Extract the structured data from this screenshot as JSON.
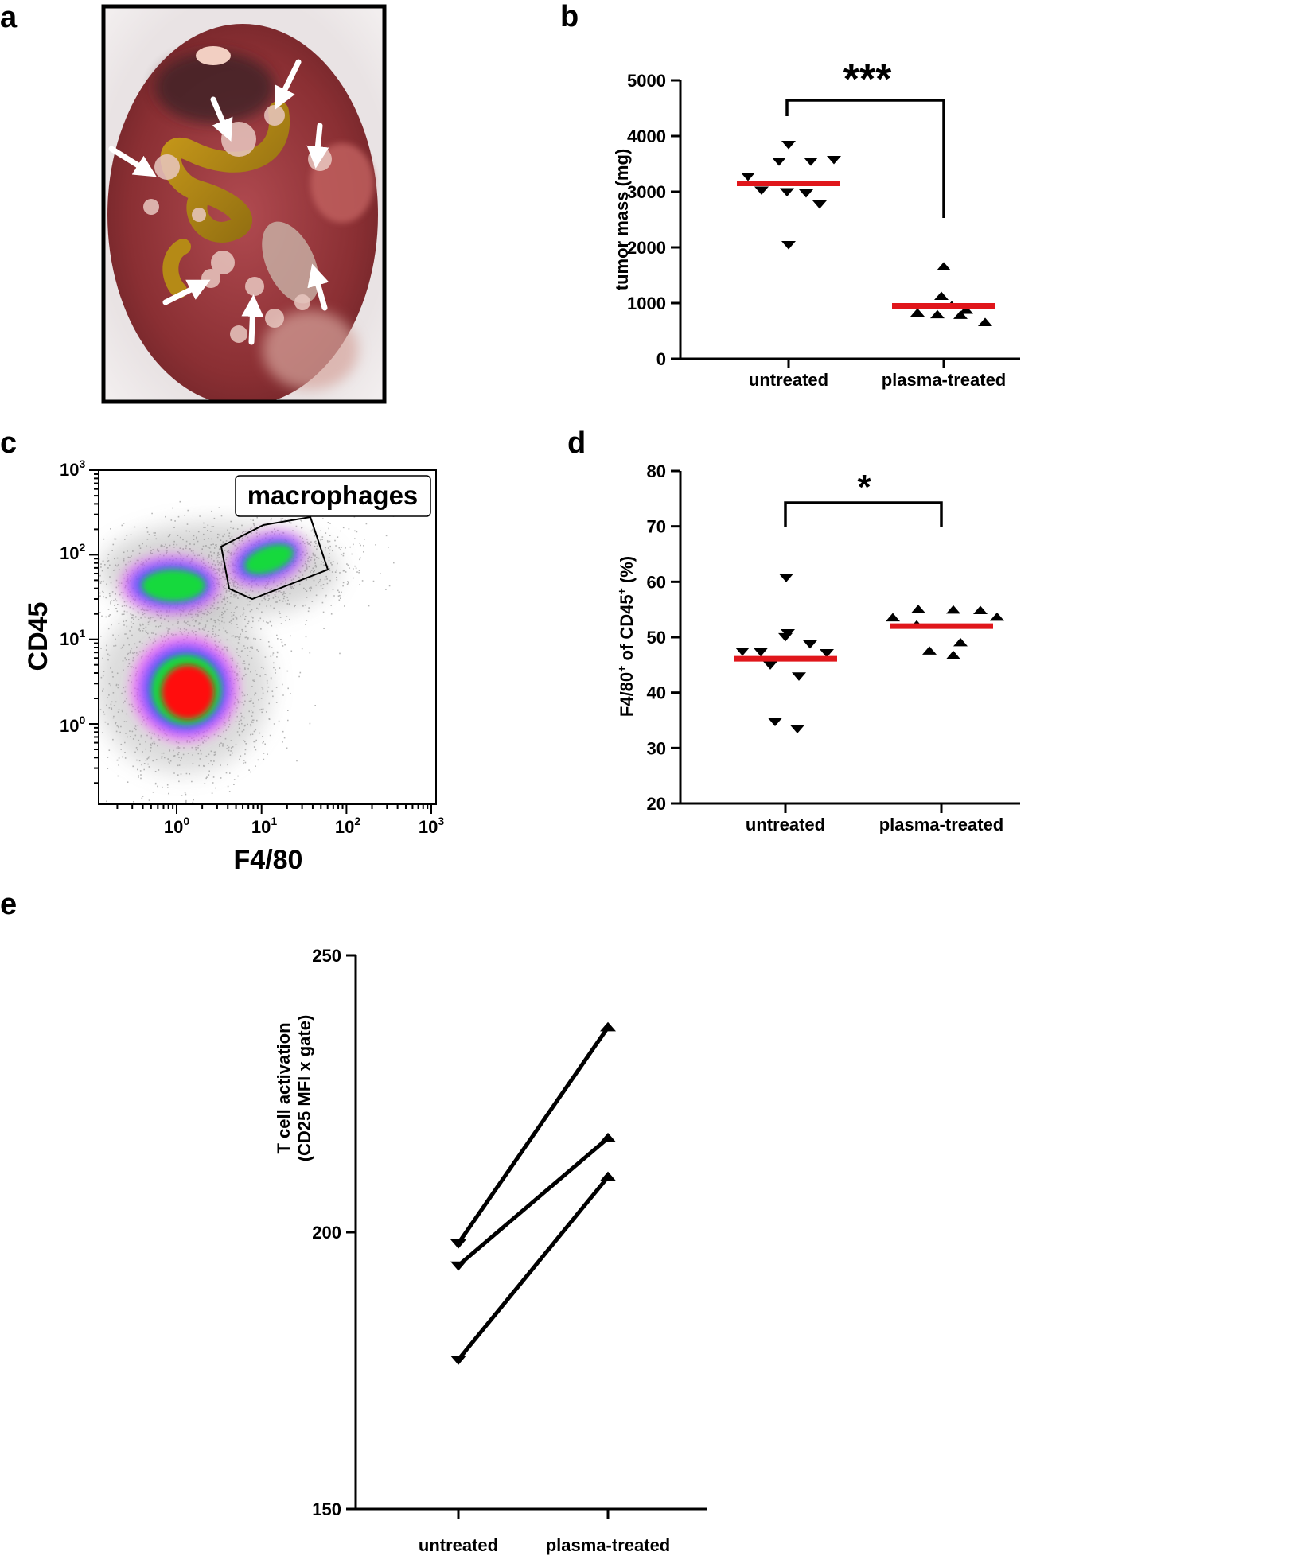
{
  "panels": {
    "a": {
      "letter": "a",
      "arrow_count": 8
    },
    "b": {
      "letter": "b",
      "type": "scatter",
      "ylabel": "tumor mass (mg)",
      "ylim": [
        0,
        5000
      ],
      "yticks": [
        0,
        1000,
        2000,
        3000,
        4000,
        5000
      ],
      "categories": [
        "untreated",
        "plasma-treated"
      ],
      "series": [
        {
          "name": "untreated",
          "marker": "triangle-down",
          "values": [
            3850,
            3550,
            3550,
            3580,
            3280,
            3030,
            3000,
            2980,
            2780,
            2050
          ],
          "mean": 3150
        },
        {
          "name": "plasma-treated",
          "marker": "triangle-up",
          "values": [
            1650,
            1120,
            950,
            870,
            820,
            790,
            780,
            650
          ],
          "mean": 950
        }
      ],
      "significance": "***",
      "mean_color": "#e0161b"
    },
    "c": {
      "letter": "c",
      "type": "scatter",
      "xlabel": "F4/80",
      "ylabel": "CD45",
      "xtick_base": "10",
      "xtick_exponents": [
        "0",
        "1",
        "2",
        "3"
      ],
      "ytick_base": "10",
      "ytick_exponents": [
        "0",
        "1",
        "2",
        "3"
      ],
      "scale": "log",
      "gate_label": "macrophages",
      "populations": [
        {
          "name": "CD45-low",
          "center_log": [
            0.0,
            0.25
          ]
        },
        {
          "name": "CD45-high left",
          "center_log": [
            -0.1,
            1.65
          ]
        },
        {
          "name": "CD45-high macrophages",
          "center_log": [
            0.9,
            1.75
          ]
        }
      ]
    },
    "d": {
      "letter": "d",
      "type": "scatter",
      "ylabel_main": "F4/80",
      "ylabel_sup1": "+",
      "ylabel_mid": " of CD45",
      "ylabel_sup2": "+",
      "ylabel_end": " (%)",
      "ylim": [
        20,
        80
      ],
      "yticks": [
        20,
        30,
        40,
        50,
        60,
        70,
        80
      ],
      "categories": [
        "untreated",
        "plasma-treated"
      ],
      "series": [
        {
          "name": "untreated",
          "marker": "triangle-down",
          "values": [
            60.8,
            50.8,
            50.1,
            48.8,
            47.5,
            47.4,
            47.2,
            45.0,
            43.0,
            34.8,
            33.5
          ],
          "mean": 46.1
        },
        {
          "name": "plasma-treated",
          "marker": "triangle-up",
          "values": [
            55.0,
            54.9,
            54.8,
            53.6,
            53.5,
            52.2,
            49.0,
            47.5,
            46.7
          ],
          "mean": 52.0
        }
      ],
      "significance": "*",
      "mean_color": "#e0161b"
    },
    "e": {
      "letter": "e",
      "type": "line",
      "ylabel_line1": "T cell activation",
      "ylabel_line2": "(CD25 MFI x gate)",
      "ylim": [
        150,
        250
      ],
      "yticks": [
        150,
        200,
        250
      ],
      "categories": [
        "untreated",
        "plasma-treated"
      ],
      "pairs": [
        {
          "untreated": 198,
          "plasma_treated": 237
        },
        {
          "untreated": 194,
          "plasma_treated": 217
        },
        {
          "untreated": 177,
          "plasma_treated": 210
        }
      ]
    }
  },
  "chart_data": [
    {
      "panel": "b",
      "type": "scatter",
      "ylabel": "tumor mass (mg)",
      "ylim": [
        0,
        5000
      ],
      "categories": [
        "untreated",
        "plasma-treated"
      ],
      "series": [
        {
          "name": "untreated",
          "values": [
            3850,
            3550,
            3550,
            3580,
            3280,
            3030,
            3000,
            2980,
            2780,
            2050
          ],
          "mean": 3150
        },
        {
          "name": "plasma-treated",
          "values": [
            1650,
            1120,
            950,
            870,
            820,
            790,
            780,
            650
          ],
          "mean": 950
        }
      ]
    },
    {
      "panel": "c",
      "type": "scatter",
      "xlabel": "F4/80",
      "ylabel": "CD45",
      "scale": "log",
      "gate": "macrophages"
    },
    {
      "panel": "d",
      "type": "scatter",
      "ylabel": "F4/80+ of CD45+ (%)",
      "ylim": [
        20,
        80
      ],
      "categories": [
        "untreated",
        "plasma-treated"
      ],
      "series": [
        {
          "name": "untreated",
          "values": [
            60.8,
            50.8,
            50.1,
            48.8,
            47.5,
            47.4,
            47.2,
            45.0,
            43.0,
            34.8,
            33.5
          ],
          "mean": 46.1
        },
        {
          "name": "plasma-treated",
          "values": [
            55.0,
            54.9,
            54.8,
            53.6,
            53.5,
            52.2,
            49.0,
            47.5,
            46.7
          ],
          "mean": 52.0
        }
      ]
    },
    {
      "panel": "e",
      "type": "line",
      "ylabel": "T cell activation (CD25 MFI x gate)",
      "ylim": [
        150,
        250
      ],
      "categories": [
        "untreated",
        "plasma-treated"
      ],
      "series": [
        {
          "name": "sample 1",
          "values": [
            198,
            237
          ]
        },
        {
          "name": "sample 2",
          "values": [
            194,
            217
          ]
        },
        {
          "name": "sample 3",
          "values": [
            177,
            210
          ]
        }
      ]
    }
  ]
}
